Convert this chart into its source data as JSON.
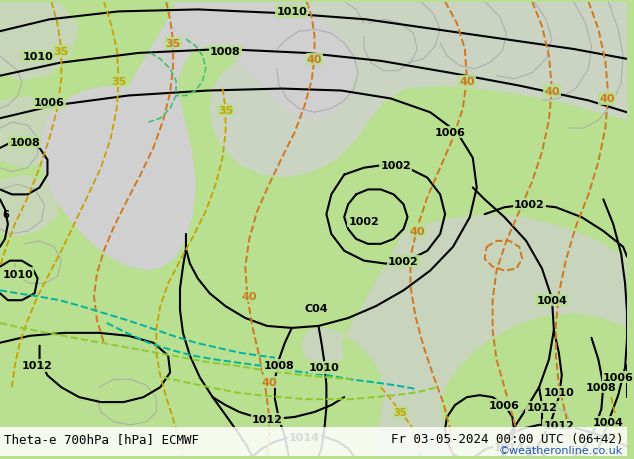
{
  "title_left": "Theta-e 700hPa [hPa] ECMWF",
  "title_right": "Fr 03-05-2024 00:00 UTC (06+42)",
  "credit": "©weatheronline.co.uk",
  "bg_green": "#b8e090",
  "bg_gray": "#d0d0d0",
  "coast_color": "#aaaaaa",
  "black": "#000000",
  "orange": "#d07820",
  "yellow": "#c8a000",
  "green_line": "#40c070",
  "teal": "#00b4a0",
  "limegreen": "#90c830",
  "credit_color": "#2255bb",
  "title_fontsize": 9,
  "credit_fontsize": 8
}
